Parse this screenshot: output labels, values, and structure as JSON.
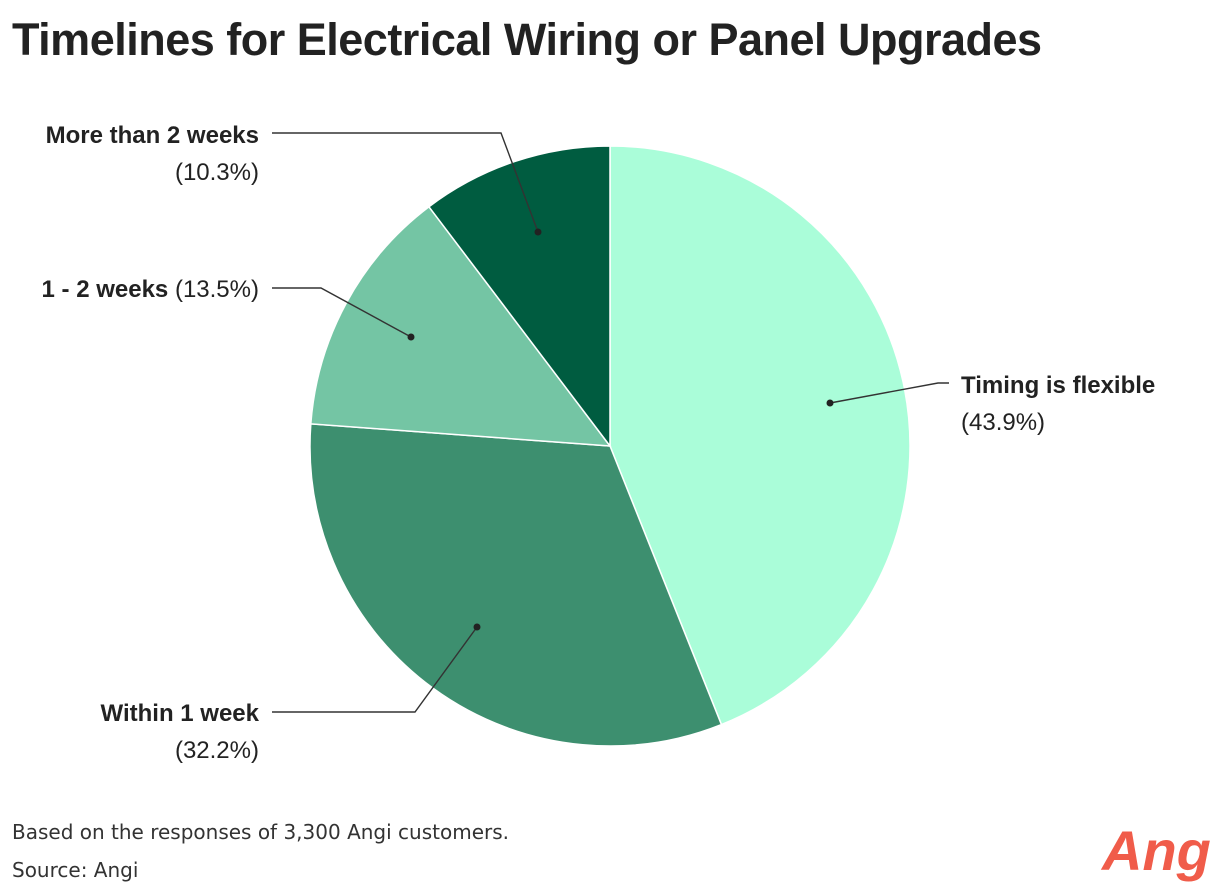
{
  "title": "Timelines for Electrical Wiring or Panel Upgrades",
  "note": "Based on the responses of 3,300 Angi customers.",
  "source": "Source: Angi",
  "logo": {
    "text": "Angi",
    "color": "#f05c4a"
  },
  "chart_data": {
    "type": "pie",
    "title": "Timelines for Electrical Wiring or Panel Upgrades",
    "start_angle": "12 o'clock, clockwise",
    "slices": [
      {
        "label": "Timing is flexible",
        "pct_text": "(43.9%)",
        "value": 43.9,
        "color": "#aafdd9"
      },
      {
        "label": "Within 1 week",
        "pct_text": "(32.2%)",
        "value": 32.2,
        "color": "#3d8f6f"
      },
      {
        "label": "1 - 2 weeks",
        "pct_text": "(13.5%)",
        "value": 13.5,
        "color": "#74c5a4"
      },
      {
        "label": "More than 2 weeks",
        "pct_text": "(10.3%)",
        "value": 10.3,
        "color": "#005c40"
      }
    ],
    "legend": "none (callout labels)"
  }
}
